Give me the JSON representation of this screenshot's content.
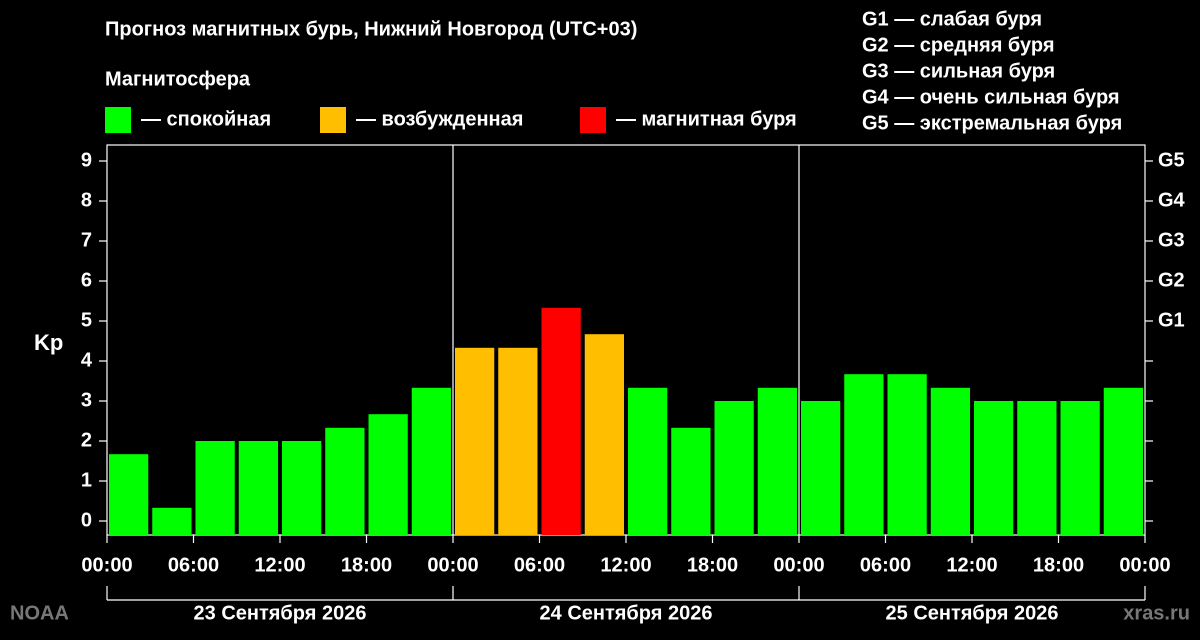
{
  "chart_data": {
    "type": "bar",
    "title": "Прогноз магнитных бурь, Нижний Новгород (UTC+03)",
    "ylabel": "Kp",
    "legend": {
      "title": "Магнитосфера",
      "items": [
        {
          "label": "— спокойная",
          "color": "#00ff00"
        },
        {
          "label": "— возбужденная",
          "color": "#ffbf00"
        },
        {
          "label": "— магнитная буря",
          "color": "#ff0000"
        }
      ]
    },
    "storm_levels": [
      "G1 — слабая буря",
      "G2 — средняя буря",
      "G3 — сильная буря",
      "G4 — очень сильная буря",
      "G5 — экстремальная буря"
    ],
    "x": [
      1.5,
      4.5,
      7.5,
      10.5,
      13.5,
      16.5,
      19.5,
      22.5,
      25.5,
      28.5,
      31.5,
      34.5,
      37.5,
      40.5,
      43.5,
      46.5,
      49.5,
      52.5,
      55.5,
      58.5,
      61.5,
      64.5,
      67.5,
      70.5
    ],
    "series": [
      {
        "name": "Kp",
        "values": [
          1.67,
          0.33,
          2,
          2,
          2,
          2.33,
          2.67,
          3.33,
          4.33,
          4.33,
          5.33,
          4.67,
          3.33,
          2.33,
          3,
          3.33,
          3,
          3.67,
          3.67,
          3.33,
          3,
          3,
          3,
          3.33
        ],
        "colors": [
          "#00ff00",
          "#00ff00",
          "#00ff00",
          "#00ff00",
          "#00ff00",
          "#00ff00",
          "#00ff00",
          "#00ff00",
          "#ffbf00",
          "#ffbf00",
          "#ff0000",
          "#ffbf00",
          "#00ff00",
          "#00ff00",
          "#00ff00",
          "#00ff00",
          "#00ff00",
          "#00ff00",
          "#00ff00",
          "#00ff00",
          "#00ff00",
          "#00ff00",
          "#00ff00",
          "#00ff00"
        ]
      }
    ],
    "xlim": [
      0,
      72
    ],
    "xticks": [
      {
        "value": 0,
        "label": "00:00"
      },
      {
        "value": 6,
        "label": "06:00"
      },
      {
        "value": 12,
        "label": "12:00"
      },
      {
        "value": 18,
        "label": "18:00"
      },
      {
        "value": 24,
        "label": "00:00"
      },
      {
        "value": 30,
        "label": "06:00"
      },
      {
        "value": 36,
        "label": "12:00"
      },
      {
        "value": 42,
        "label": "18:00"
      },
      {
        "value": 48,
        "label": "00:00"
      },
      {
        "value": 54,
        "label": "06:00"
      },
      {
        "value": 60,
        "label": "12:00"
      },
      {
        "value": 66,
        "label": "18:00"
      },
      {
        "value": 72,
        "label": "00:00"
      }
    ],
    "day_bounds": [
      0,
      24,
      48,
      72
    ],
    "day_labels": [
      "23 Сентября 2026",
      "24 Сентября 2026",
      "25 Сентября 2026"
    ],
    "ylim": [
      -0.35,
      9.4
    ],
    "yticks": [
      0,
      1,
      2,
      3,
      4,
      5,
      6,
      7,
      8,
      9
    ],
    "y2ticks": [
      {
        "value": 5,
        "label": "G1"
      },
      {
        "value": 6,
        "label": "G2"
      },
      {
        "value": 7,
        "label": "G3"
      },
      {
        "value": 8,
        "label": "G4"
      },
      {
        "value": 9,
        "label": "G5"
      }
    ],
    "source": "NOAA",
    "site": "xras.ru"
  }
}
